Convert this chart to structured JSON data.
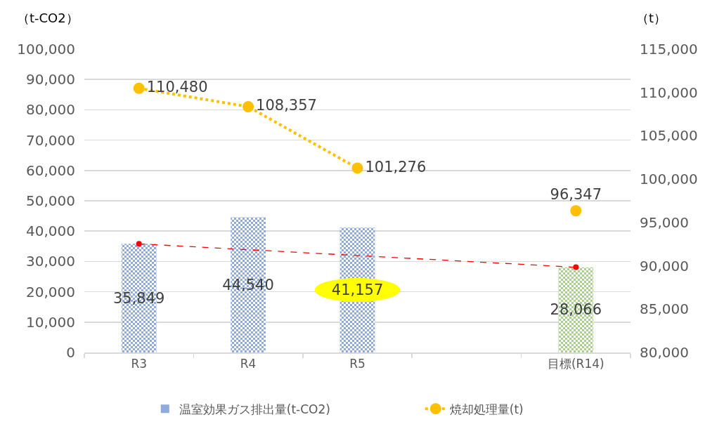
{
  "chart_data": {
    "type": "bar",
    "categories": [
      "R3",
      "R4",
      "R5",
      null,
      "目標(R14)"
    ],
    "ylabel": "（t-CO2）",
    "y2label": "（t）",
    "ylim": [
      0,
      100000
    ],
    "yticks": [
      0,
      {
        "value": 10000,
        "label": "10,000"
      },
      {
        "value": 20000,
        "label": "20,000"
      },
      {
        "value": 30000,
        "label": "30,000"
      },
      {
        "value": 40000,
        "label": "40,000"
      },
      {
        "value": 50000,
        "label": "50,000"
      },
      {
        "value": 60000,
        "label": "60,000"
      },
      {
        "value": 70000,
        "label": "70,000"
      },
      {
        "value": 80000,
        "label": "80,000"
      },
      {
        "value": 90000,
        "label": "90,000"
      },
      {
        "value": 100000,
        "label": "100,000"
      }
    ],
    "y2lim": [
      80000,
      115000
    ],
    "y2ticks": [
      {
        "value": 80000,
        "label": "80,000"
      },
      {
        "value": 85000,
        "label": "85,000"
      },
      {
        "value": 90000,
        "label": "90,000"
      },
      {
        "value": 95000,
        "label": "95,000"
      },
      {
        "value": 100000,
        "label": "100,000"
      },
      {
        "value": 105000,
        "label": "105,000"
      },
      {
        "value": 110000,
        "label": "110,000"
      },
      {
        "value": 115000,
        "label": "115,000"
      }
    ],
    "grid": "y",
    "legend": "bottom",
    "series": [
      {
        "name": "温室効果ガス排出量(t-CO2)",
        "colors": [
          "#8faadc",
          "#8faadc",
          "#8faadc",
          null,
          "#a9d18e"
        ],
        "values": [
          35849,
          44540,
          41157,
          null,
          28066
        ],
        "value_labels": [
          "35,849",
          "44,540",
          "41,157",
          null,
          "28,066"
        ]
      },
      {
        "type": "line",
        "name": "焼却処理量(t)",
        "axis": "y2",
        "color": "#ffc000",
        "marker": "circle",
        "line_style": "dotted",
        "values": [
          110480,
          108357,
          101276,
          null,
          96347
        ],
        "value_labels": [
          "110,480",
          "108,357",
          "101,276",
          null,
          "96,347"
        ]
      },
      {
        "type": "line",
        "color": "#ff0000",
        "marker": "circle",
        "line_style": "dashed",
        "x": [
          "R3",
          "目標(R14)"
        ],
        "values": [
          35800,
          28100
        ]
      }
    ]
  }
}
